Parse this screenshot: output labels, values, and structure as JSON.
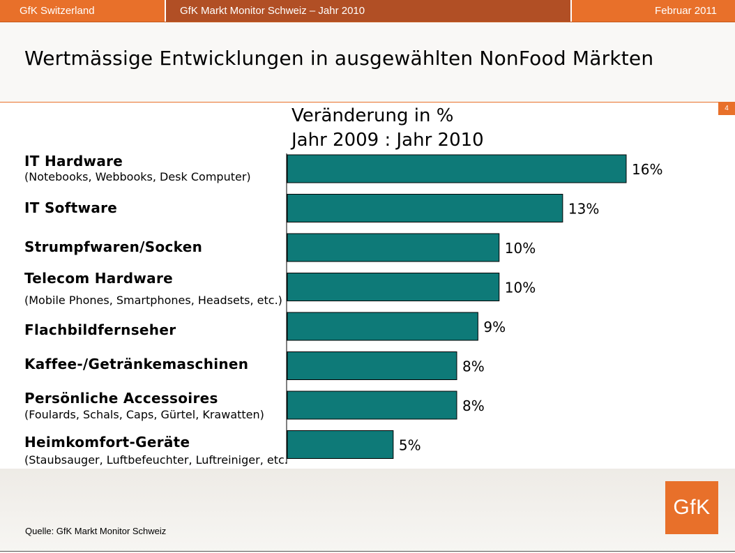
{
  "header": {
    "left": "GfK Switzerland",
    "center": "GfK Markt Monitor Schweiz – Jahr 2010",
    "right": "Februar 2011"
  },
  "title": "Wertmässige Entwicklungen in ausgewählten NonFood Märkten",
  "page_number": "4",
  "source": "Quelle: GfK Markt Monitor Schweiz",
  "logo_text": "GfK",
  "colors": {
    "accent": "#e8702a",
    "accent_dark": "#b14f25",
    "bar": "#0e7a78"
  },
  "chart_data": {
    "type": "bar",
    "orientation": "horizontal",
    "title_lines": [
      "Veränderung in %",
      "Jahr 2009 : Jahr 2010"
    ],
    "unit": "%",
    "categories": [
      "IT Hardware",
      "IT Software",
      "Strumpfwaren/Socken",
      "Telecom Hardware",
      "Flachbildfernseher",
      "Kaffee-/Getränkemaschinen",
      "Persönliche Accessoires",
      "Heimkomfort-Geräte"
    ],
    "subtitles": [
      "(Notebooks, Webbooks, Desk Computer)",
      "",
      "",
      "(Mobile Phones, Smartphones, Headsets, etc.)",
      "",
      "",
      "(Foulards, Schals, Caps, Gürtel, Krawatten)",
      "(Staubsauger, Luftbefeuchter, Luftreiniger, etc."
    ],
    "values": [
      16,
      13,
      10,
      10,
      9,
      8,
      8,
      5
    ],
    "value_labels": [
      "16%",
      "13%",
      "10%",
      "10%",
      "9%",
      "8%",
      "8%",
      "5%"
    ],
    "xlim": [
      0,
      16
    ],
    "grid": false,
    "legend": "none"
  }
}
